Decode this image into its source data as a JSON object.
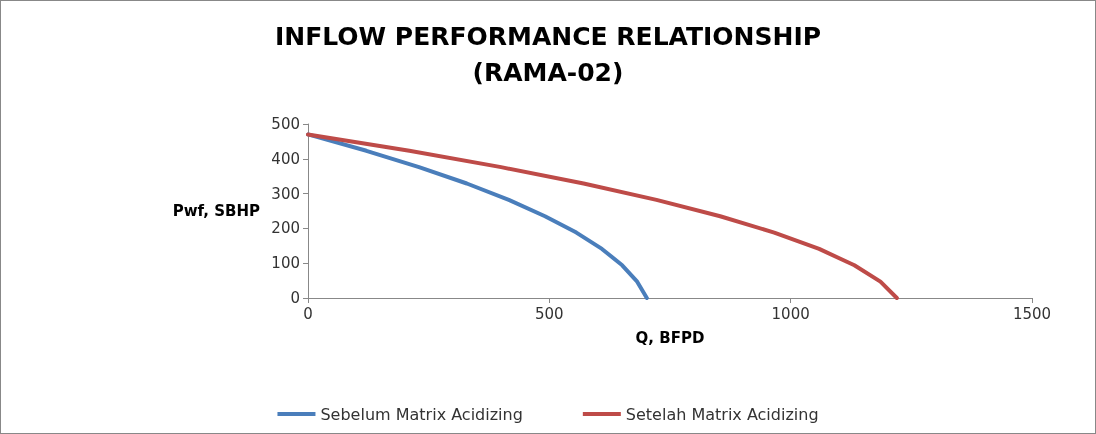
{
  "chart_data": {
    "type": "line",
    "title": "INFLOW PERFORMANCE RELATIONSHIP\n(RAMA-02)",
    "xlabel": "Q, BFPD",
    "ylabel": "Pwf, SBHP",
    "series": [
      {
        "name": "Sebelum Matrix Acidizing",
        "color": "#4a7ebb",
        "x": [
          0,
          121,
          230,
          329,
          416,
          491,
          556,
          609,
          651,
          682,
          702
        ],
        "values": [
          470,
          423,
          376,
          329,
          282,
          235,
          188,
          141,
          94,
          47,
          0
        ]
      },
      {
        "name": "Setelah Matrix Acidizing",
        "color": "#be4b48",
        "x": [
          0,
          210,
          400,
          571,
          722,
          854,
          966,
          1059,
          1132,
          1186,
          1220
        ],
        "values": [
          470,
          423,
          376,
          329,
          282,
          235,
          188,
          141,
          94,
          47,
          0
        ]
      }
    ],
    "xlim": [
      0,
      1500
    ],
    "xticks": [
      0,
      500,
      1000,
      1500
    ],
    "ylim": [
      0,
      500
    ],
    "yticks": [
      0,
      100,
      200,
      300,
      400,
      500
    ],
    "grid": false,
    "legend": "bottom",
    "marker": "none",
    "line_style": "solid"
  }
}
